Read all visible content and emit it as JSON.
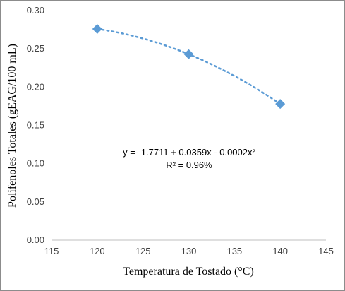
{
  "chart_data": {
    "type": "scatter",
    "title": "",
    "xlabel": "Temperatura de Tostado (°C)",
    "ylabel": "Polifenoles Totales (gEAG/100 mL)",
    "xlim": [
      115,
      145
    ],
    "ylim": [
      0.0,
      0.3
    ],
    "x_ticks": [
      "115",
      "120",
      "125",
      "130",
      "135",
      "140",
      "145"
    ],
    "y_ticks": [
      "0.00",
      "0.05",
      "0.10",
      "0.15",
      "0.20",
      "0.25",
      "0.30"
    ],
    "grid": false,
    "legend": "none",
    "series": [
      {
        "x": [
          120,
          130,
          140
        ],
        "y": [
          0.276,
          0.243,
          0.178
        ],
        "marker": "diamond",
        "color": "#5b9bd5"
      }
    ],
    "trendline": {
      "type": "polynomial",
      "style": "dotted",
      "color": "#5b9bd5",
      "equation": "y =- 1.7711 + 0.0359x - 0.0002x²",
      "r_squared": "R² = 0.96%"
    }
  }
}
